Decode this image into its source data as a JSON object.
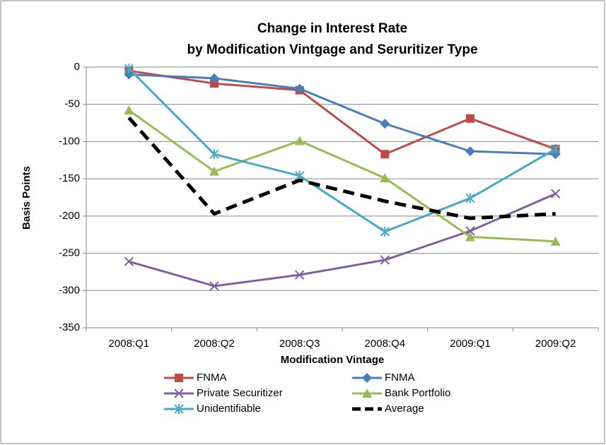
{
  "chart_data": {
    "type": "line",
    "title": [
      "Change in Interest Rate",
      "by Modification Vintgage and  Seruritizer Type"
    ],
    "x_label": "Modification Vintage",
    "y_label": "Basis Points",
    "categories": [
      "2008:Q1",
      "2008:Q2",
      "2008:Q3",
      "2008:Q4",
      "2009:Q1",
      "2009:Q2"
    ],
    "ylim": [
      -350,
      0
    ],
    "yticks": [
      -350,
      -300,
      -250,
      -200,
      -150,
      -100,
      -50,
      0
    ],
    "grid": true,
    "series": [
      {
        "name": "FNMA",
        "color": "#be4b48",
        "marker": "square",
        "line_style": "solid",
        "values": [
          -5,
          -22,
          -31,
          -117,
          -69,
          -110
        ]
      },
      {
        "name": "FNMA",
        "color": "#4a7ebb",
        "marker": "diamond",
        "line_style": "solid",
        "values": [
          -10,
          -15,
          -29,
          -76,
          -113,
          -117
        ]
      },
      {
        "name": "Private Securitizer",
        "color": "#7d60a0",
        "marker": "x",
        "line_style": "solid",
        "values": [
          -261,
          -294,
          -279,
          -259,
          -220,
          -170
        ]
      },
      {
        "name": "Bank Portfolio",
        "color": "#98b954",
        "marker": "triangle",
        "line_style": "solid",
        "values": [
          -58,
          -140,
          -99,
          -149,
          -228,
          -234
        ]
      },
      {
        "name": "Unidentifiable",
        "color": "#46aac5",
        "marker": "star",
        "line_style": "solid",
        "values": [
          -2,
          -117,
          -146,
          -221,
          -176,
          -110
        ]
      },
      {
        "name": "Average",
        "color": "#000000",
        "marker": "none",
        "line_style": "dashed",
        "values": [
          -68,
          -197,
          -152,
          -180,
          -203,
          -197
        ]
      }
    ]
  }
}
